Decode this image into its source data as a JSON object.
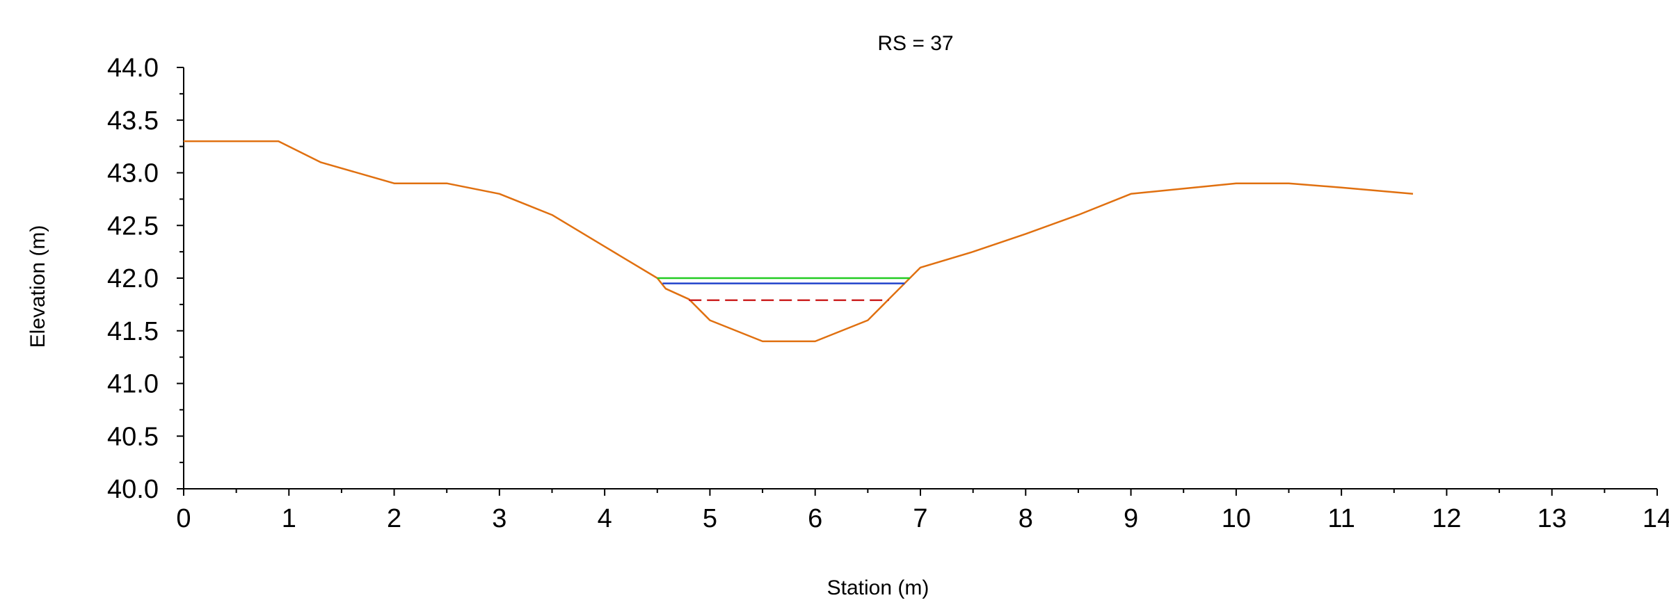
{
  "chart_data": {
    "type": "line",
    "title": "RS = 37",
    "xlabel": "Station (m)",
    "ylabel": "Elevation (m)",
    "xlim": [
      0,
      14
    ],
    "ylim": [
      40.0,
      44.0
    ],
    "xticks": [
      0,
      1,
      2,
      3,
      4,
      5,
      6,
      7,
      8,
      9,
      10,
      11,
      12,
      13,
      14
    ],
    "xtick_labels": [
      "0",
      "1",
      "2",
      "3",
      "4",
      "5",
      "6",
      "7",
      "8",
      "9",
      "10",
      "11",
      "12",
      "13",
      "14"
    ],
    "yticks": [
      40.0,
      40.5,
      41.0,
      41.5,
      42.0,
      42.5,
      43.0,
      43.5,
      44.0
    ],
    "ytick_labels": [
      "40.0",
      "40.5",
      "41.0",
      "41.5",
      "42.0",
      "42.5",
      "43.0",
      "43.5",
      "44.0"
    ],
    "grid": false,
    "legend": "none",
    "series": [
      {
        "kind": "ground",
        "color": "#E07010",
        "style": "solid",
        "x": [
          0,
          0.4,
          0.9,
          1.3,
          2.0,
          2.5,
          3.0,
          3.5,
          4.0,
          4.5,
          4.58,
          4.8,
          5.0,
          5.5,
          6.0,
          6.5,
          6.7,
          7.0,
          7.5,
          8.0,
          8.5,
          9.0,
          9.5,
          10.0,
          10.5,
          11.0,
          11.68
        ],
        "y": [
          43.3,
          43.3,
          43.3,
          43.1,
          42.9,
          42.9,
          42.8,
          42.6,
          42.3,
          42.0,
          41.9,
          41.8,
          41.6,
          41.4,
          41.4,
          41.6,
          41.8,
          42.1,
          42.25,
          42.42,
          42.6,
          42.8,
          42.85,
          42.9,
          42.9,
          42.86,
          42.8
        ]
      },
      {
        "kind": "water-surface",
        "color": "#22CC22",
        "style": "solid",
        "x": [
          4.5,
          6.9
        ],
        "y": [
          42.0,
          42.0
        ]
      },
      {
        "kind": "water-surface",
        "color": "#2244CC",
        "style": "solid",
        "x": [
          4.55,
          6.85
        ],
        "y": [
          41.95,
          41.95
        ]
      },
      {
        "kind": "critical-depth",
        "color": "#CC2222",
        "style": "dashed",
        "x": [
          4.8,
          6.7
        ],
        "y": [
          41.79,
          41.79
        ]
      }
    ]
  }
}
